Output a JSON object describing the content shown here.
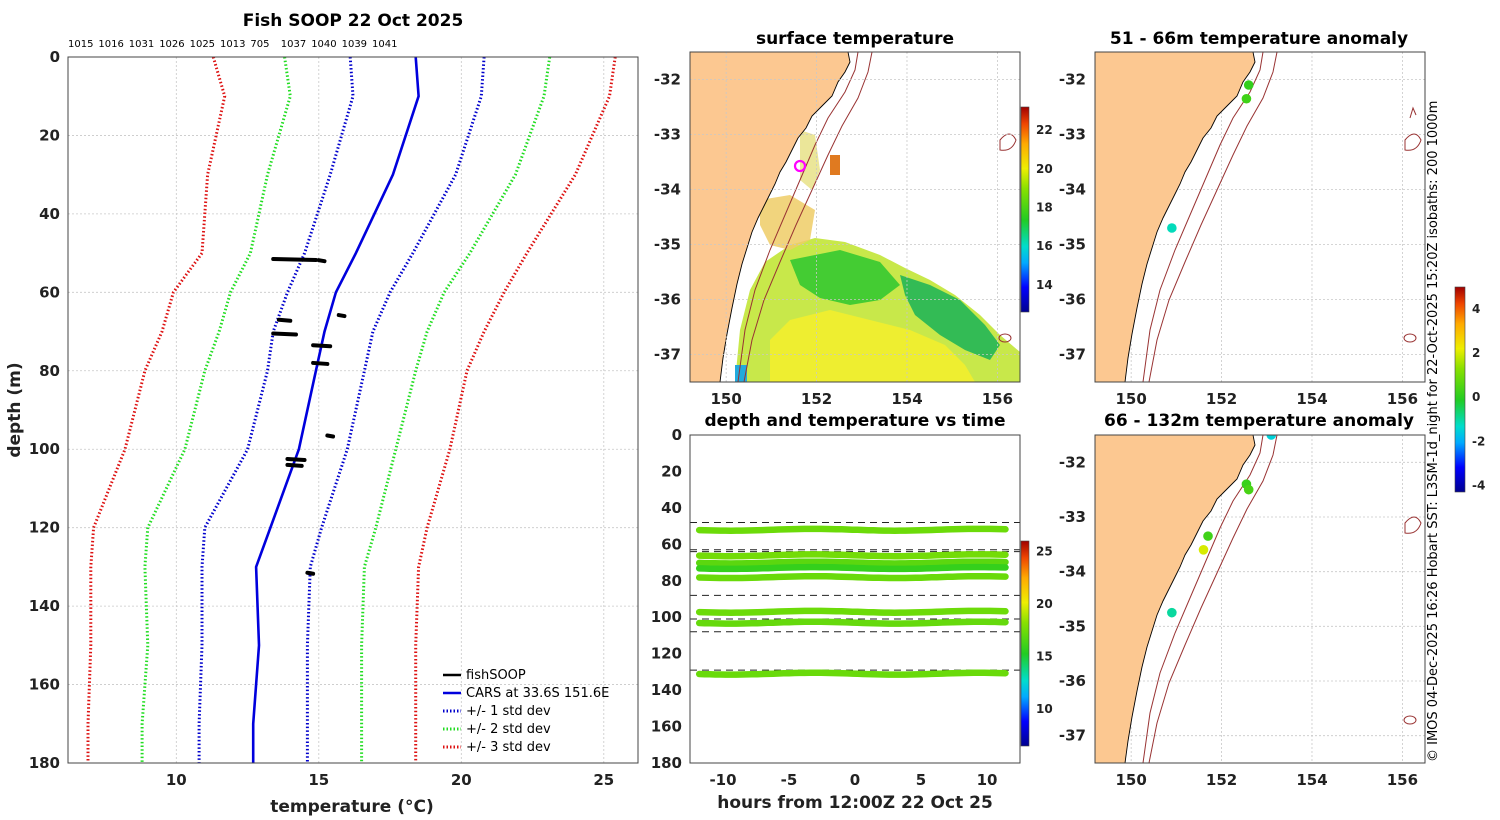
{
  "panels": {
    "profile": {
      "title": "Fish SOOP 22 Oct 2025",
      "xlabel": "temperature (°C)",
      "ylabel": "depth (m)"
    },
    "surface": {
      "title": "surface temperature"
    },
    "timeseries": {
      "title": "depth and temperature vs time",
      "xlabel": "hours from 12:00Z 22 Oct 25"
    },
    "anom1": {
      "title": "51 - 66m temperature anomaly"
    },
    "anom2": {
      "title": "66 - 132m temperature anomaly"
    }
  },
  "side_text": "© IMOS 04-Dec-2025 16:26 Hobart SST: L3SM-1d_night for 22-Oct-2025 15:20Z isobaths: 200  1000m",
  "chart_data": [
    {
      "type": "line",
      "name": "profile",
      "title": "Fish SOOP 22 Oct 2025",
      "xlabel": "temperature (°C)",
      "ylabel": "depth (m)",
      "xlim": [
        6.2,
        26.2
      ],
      "ylim": [
        180,
        0
      ],
      "xticks": [
        10,
        15,
        20,
        25
      ],
      "yticks": [
        0,
        20,
        40,
        60,
        80,
        100,
        120,
        140,
        160,
        180
      ],
      "counts": [
        "1015",
        "1016",
        "1031",
        "1026",
        "1025",
        "1013",
        "705",
        "1037",
        "1040",
        "1039",
        "1041"
      ],
      "depths": [
        0,
        10,
        30,
        50,
        60,
        70,
        80,
        100,
        120,
        130,
        150,
        170,
        180
      ],
      "cars_mean": [
        18.4,
        18.5,
        17.6,
        16.3,
        15.6,
        15.2,
        14.9,
        14.3,
        13.3,
        12.8,
        12.9,
        12.7,
        12.7
      ],
      "std_devs": [
        {
          "name": "+/- 1 std dev",
          "color": "#0000cc",
          "lower": [
            16.1,
            16.2,
            15.4,
            14.5,
            13.9,
            13.4,
            13.2,
            12.5,
            11.0,
            10.9,
            10.9,
            10.8,
            10.8
          ],
          "upper": [
            20.8,
            20.7,
            19.8,
            18.3,
            17.5,
            16.9,
            16.6,
            16.0,
            15.1,
            14.7,
            14.6,
            14.6,
            14.6
          ]
        },
        {
          "name": "+/- 2 std dev",
          "color": "#22dd22",
          "lower": [
            13.8,
            14.0,
            13.2,
            12.6,
            11.9,
            11.5,
            11.0,
            10.3,
            9.0,
            8.9,
            9.0,
            8.8,
            8.8
          ],
          "upper": [
            23.1,
            22.9,
            21.9,
            20.3,
            19.4,
            18.8,
            18.4,
            17.7,
            17.0,
            16.6,
            16.5,
            16.5,
            16.5
          ]
        },
        {
          "name": "+/- 3 std dev",
          "color": "#dd1111",
          "lower": [
            11.3,
            11.7,
            11.1,
            10.9,
            9.9,
            9.5,
            8.9,
            8.2,
            7.1,
            7.0,
            7.0,
            6.9,
            6.9
          ],
          "upper": [
            25.4,
            25.2,
            24.0,
            22.3,
            21.5,
            20.8,
            20.2,
            19.6,
            18.8,
            18.5,
            18.4,
            18.4,
            18.4
          ]
        }
      ],
      "fishsoop": [
        {
          "t0": 13.4,
          "t1": 14.9,
          "d": 51.5
        },
        {
          "t0": 15.0,
          "t1": 15.2,
          "d": 51.8
        },
        {
          "t0": 13.6,
          "t1": 14.0,
          "d": 67.0
        },
        {
          "t0": 13.4,
          "t1": 14.2,
          "d": 70.5
        },
        {
          "t0": 15.7,
          "t1": 15.9,
          "d": 65.8
        },
        {
          "t0": 14.8,
          "t1": 15.4,
          "d": 73.5
        },
        {
          "t0": 14.8,
          "t1": 15.3,
          "d": 78.0
        },
        {
          "t0": 15.3,
          "t1": 15.5,
          "d": 96.5
        },
        {
          "t0": 13.9,
          "t1": 14.5,
          "d": 102.5
        },
        {
          "t0": 13.9,
          "t1": 14.4,
          "d": 104.0
        },
        {
          "t0": 14.6,
          "t1": 14.8,
          "d": 131.5
        }
      ],
      "legend": [
        "fishSOOP",
        "CARS at 33.6S 151.6E",
        "+/- 1 std dev",
        "+/- 2 std dev",
        "+/- 3 std dev"
      ],
      "legend_position": "bottom-right"
    },
    {
      "type": "heatmap",
      "name": "surface temperature",
      "xlim": [
        149.2,
        156.5
      ],
      "ylim": [
        -37.5,
        -31.5
      ],
      "xticks": [
        150,
        152,
        154,
        156
      ],
      "yticks": [
        -32,
        -33,
        -34,
        -35,
        -36,
        -37
      ],
      "colorbar_ticks": [
        14,
        16,
        18,
        20,
        22
      ],
      "colorbar_range": [
        12.6,
        23.2
      ],
      "marker": {
        "lon": 151.6,
        "lat": -33.6
      }
    },
    {
      "type": "scatter",
      "name": "depth and temperature vs time",
      "xlabel": "hours from 12:00Z 22 Oct 25",
      "xlim": [
        -12.5,
        12.5
      ],
      "ylim": [
        180,
        0
      ],
      "xticks": [
        -10,
        -5,
        0,
        5,
        10
      ],
      "yticks": [
        0,
        20,
        40,
        60,
        80,
        100,
        120,
        140,
        160,
        180
      ],
      "colorbar_ticks": [
        10,
        15,
        20,
        25
      ],
      "colorbar_range": [
        6.5,
        26
      ],
      "tracks": [
        {
          "depth": 52,
          "temp": 17.4
        },
        {
          "depth": 66,
          "temp": 17.6
        },
        {
          "depth": 70,
          "temp": 16.9
        },
        {
          "depth": 73,
          "temp": 15.8
        },
        {
          "depth": 78,
          "temp": 17.3
        },
        {
          "depth": 97,
          "temp": 17.4
        },
        {
          "depth": 103,
          "temp": 17.2
        },
        {
          "depth": 131,
          "temp": 17.3
        }
      ],
      "dashed_lines": [
        48,
        63,
        64,
        88,
        101,
        108,
        129
      ]
    },
    {
      "type": "scatter",
      "name": "51 - 66m temperature anomaly",
      "xlim": [
        149.2,
        156.5
      ],
      "ylim": [
        -37.5,
        -31.5
      ],
      "xticks": [
        150,
        152,
        154,
        156
      ],
      "yticks": [
        -32,
        -33,
        -34,
        -35,
        -36,
        -37
      ],
      "points": [
        {
          "lon": 152.6,
          "lat": -32.1,
          "anom": 0.1
        },
        {
          "lon": 152.55,
          "lat": -32.35,
          "anom": 0.3
        },
        {
          "lon": 150.9,
          "lat": -34.7,
          "anom": -1.2
        }
      ]
    },
    {
      "type": "scatter",
      "name": "66 - 132m temperature anomaly",
      "xlim": [
        149.2,
        156.5
      ],
      "ylim": [
        -37.5,
        -31.5
      ],
      "xticks": [
        150,
        152,
        154,
        156
      ],
      "yticks": [
        -32,
        -33,
        -34,
        -35,
        -36,
        -37
      ],
      "colorbar_ticks": [
        4,
        2,
        0,
        -2,
        -4
      ],
      "colorbar_range": [
        -4.3,
        5
      ],
      "points": [
        {
          "lon": 153.1,
          "lat": -31.5,
          "anom": -1.5
        },
        {
          "lon": 152.55,
          "lat": -32.4,
          "anom": 0.2
        },
        {
          "lon": 152.6,
          "lat": -32.5,
          "anom": 0.4
        },
        {
          "lon": 151.7,
          "lat": -33.35,
          "anom": 0.3
        },
        {
          "lon": 151.6,
          "lat": -33.6,
          "anom": 2.0
        },
        {
          "lon": 150.9,
          "lat": -34.75,
          "anom": -1.0
        }
      ]
    }
  ]
}
